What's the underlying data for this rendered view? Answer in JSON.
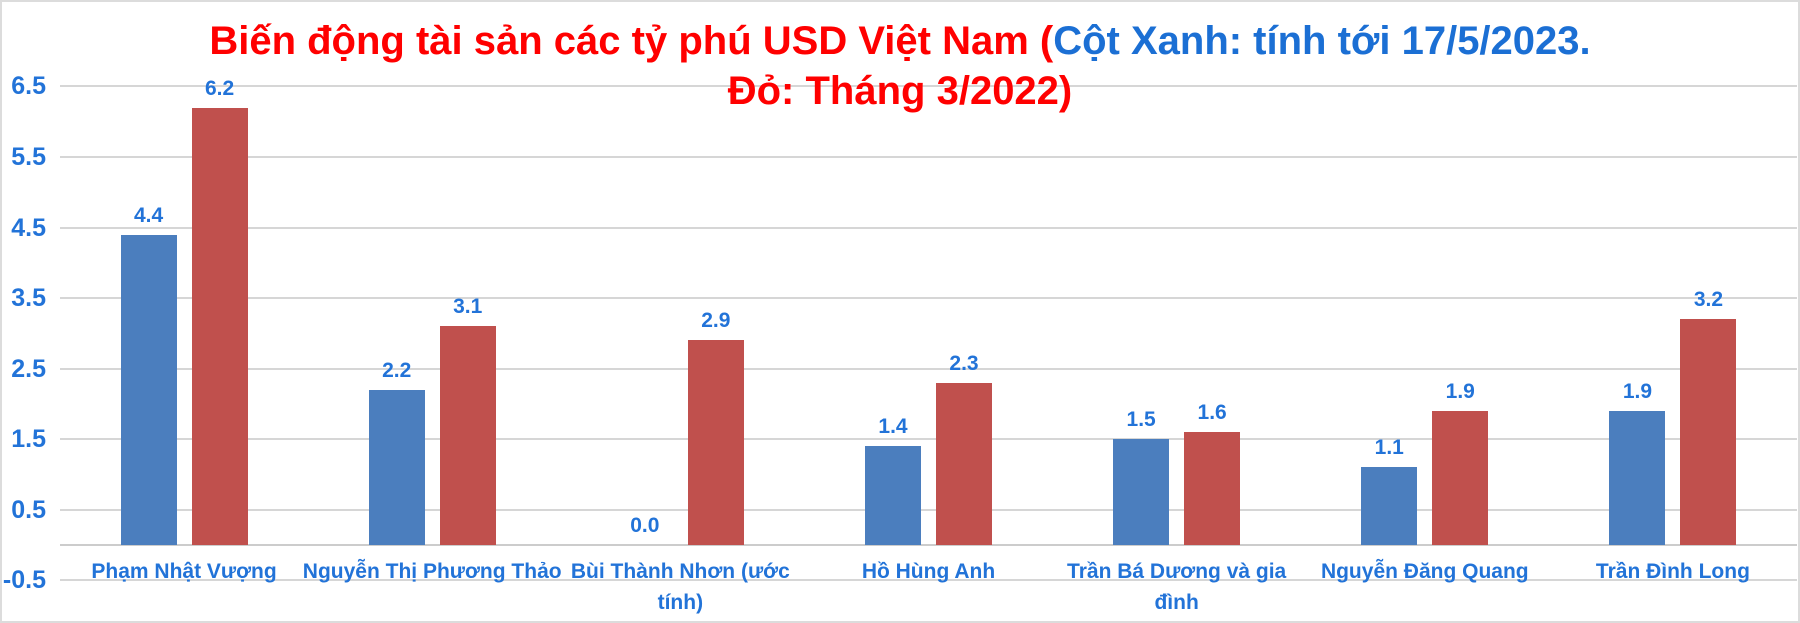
{
  "chart_data": {
    "type": "bar",
    "title": "Biến động tài sản các tỷ phú USD Việt Nam (Cột Xanh: tính tới 17/5/2023. Đỏ: Tháng 3/2022)",
    "title_lines": [
      [
        {
          "text": "Biến động tài sản các tỷ phú USD Việt Nam (",
          "color": "#FF0000"
        },
        {
          "text": "Cột Xanh: tính tới 17/5/2023.",
          "color": "#1B6FD4"
        }
      ],
      [
        {
          "text": "Đỏ: Tháng 3/2022)",
          "color": "#FF0000"
        }
      ]
    ],
    "categories": [
      "Phạm Nhật Vượng",
      "Nguyễn Thị Phương Thảo",
      "Bùi Thành Nhơn (ước tính)",
      "Hồ Hùng Anh",
      "Trần Bá Dương và gia đình",
      "Nguyễn Đăng Quang",
      "Trần Đình Long"
    ],
    "series": [
      {
        "name": "Cột Xanh: tính tới 17/5/2023",
        "color": "#4B7EBE",
        "values": [
          4.4,
          2.2,
          0.0,
          1.4,
          1.5,
          1.1,
          1.9
        ]
      },
      {
        "name": "Đỏ: Tháng 3/2022",
        "color": "#C0504D",
        "values": [
          6.2,
          3.1,
          2.9,
          2.3,
          1.6,
          1.9,
          3.2
        ]
      }
    ],
    "y_ticks": [
      6.5,
      5.5,
      4.5,
      3.5,
      2.5,
      1.5,
      0.5,
      -0.5
    ],
    "ylim": [
      -0.5,
      6.5
    ],
    "baseline": 0,
    "grid": true,
    "legend_position": "none",
    "colors": {
      "data_label": "#2273D8",
      "axis_label": "#2273D8",
      "category_label": "#2273D8",
      "gridline": "#D6D6D6",
      "axis_line": "#CCCCCC",
      "border": "#DCDCDC"
    }
  }
}
